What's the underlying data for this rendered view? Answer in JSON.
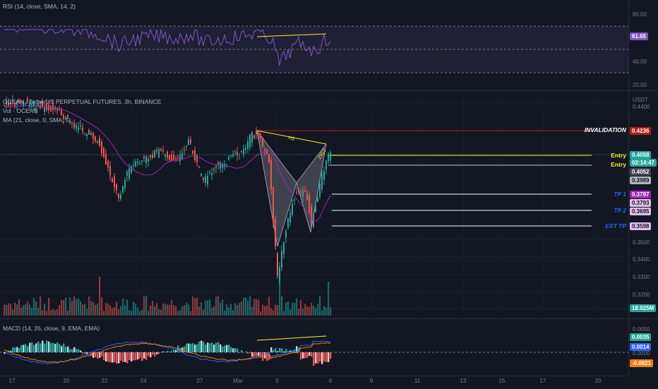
{
  "rsi": {
    "legend": "RSI (14, close, SMA, 14, 2)",
    "ticks": [
      "80.00",
      "40.00",
      "20.00"
    ],
    "value_tag": "61.65"
  },
  "main": {
    "legend_symbol": "OCEAN / TetherUS PERPETUAL FUTURES, 3h, BINANCE",
    "legend_vol": "Vol · OCEAN",
    "legend_ma": "MA (21, close, 0, SMA, 5)",
    "currency": "USDT",
    "ticks": [
      "0.4400",
      "0.3500",
      "0.3400",
      "0.3300",
      "0.3200"
    ],
    "pattern_label_h": "H3",
    "pattern_label_x": "ZIG7",
    "levels": {
      "invalidation": {
        "label": "INVALIDATION",
        "price": "0.4236"
      },
      "entry1": {
        "label": "Entry",
        "price": "0.4058",
        "countdown": "02:14:47"
      },
      "entry2": {
        "label": "Entry",
        "price": "0.4052",
        "sub": "0.3989"
      },
      "tp1": {
        "label": "TP 1",
        "price": "0.3797",
        "sub": "0.3793"
      },
      "tp2": {
        "label": "TP 2",
        "price": "0.3695"
      },
      "ext": {
        "label": "EXT TP",
        "price": "0.3598"
      }
    },
    "volume_tag": "18.925M"
  },
  "macd": {
    "legend": "MACD (14, 26, close, 9, EMA, EMA)",
    "ticks": [
      "0.0050",
      "0.0000"
    ],
    "tags": [
      "0.0035",
      "0.0014",
      "-0.0021"
    ]
  },
  "xaxis": {
    "labels": [
      "17",
      "20",
      "22",
      "24",
      "27",
      "Mar",
      "3",
      "6",
      "9",
      "11",
      "13",
      "15",
      "17",
      "20"
    ]
  },
  "colors": {
    "up": "#26a69a",
    "down": "#ef5350",
    "rsi": "#7e57c2",
    "ma": "#9c27b0",
    "blue_tag": "#2962ff",
    "orange_tag": "#f57c00",
    "yellow": "#ffeb3b"
  }
}
